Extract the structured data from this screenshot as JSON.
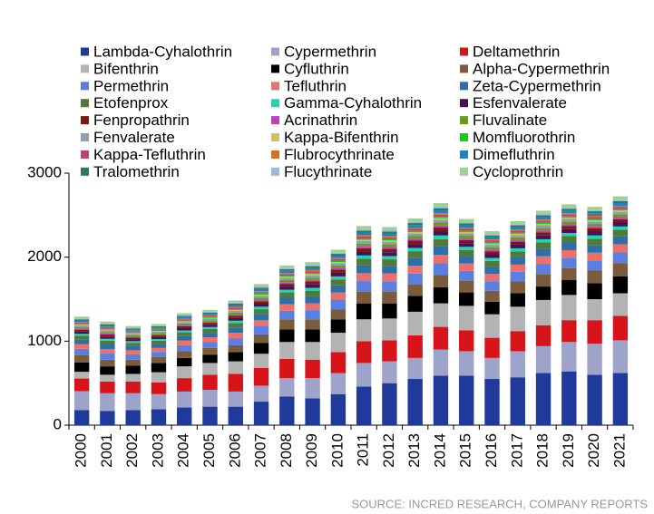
{
  "chart_data": {
    "type": "bar",
    "stacked": true,
    "source": "SOURCE: INCRED RESEARCH, COMPANY REPORTS",
    "categories": [
      "2000",
      "2001",
      "2002",
      "2003",
      "2004",
      "2005",
      "2006",
      "2007",
      "2008",
      "2009",
      "2010",
      "2011",
      "2012",
      "2013",
      "2014",
      "2015",
      "2016",
      "2017",
      "2018",
      "2019",
      "2020",
      "2021"
    ],
    "ylim": [
      0,
      3000
    ],
    "yticks": [
      0,
      1000,
      2000,
      3000
    ],
    "grid": false,
    "series": [
      {
        "name": "Lambda-Cyhalothrin",
        "color": "#1f3a9a",
        "values": [
          180,
          170,
          180,
          190,
          210,
          220,
          220,
          280,
          340,
          320,
          370,
          460,
          500,
          550,
          590,
          590,
          550,
          570,
          620,
          640,
          600,
          620
        ]
      },
      {
        "name": "Cypermethrin",
        "color": "#9ea3c9",
        "values": [
          225,
          210,
          200,
          180,
          190,
          200,
          180,
          190,
          220,
          240,
          250,
          280,
          260,
          250,
          310,
          290,
          250,
          310,
          320,
          350,
          370,
          390
        ]
      },
      {
        "name": "Deltamethrin",
        "color": "#d7141a",
        "values": [
          150,
          140,
          140,
          140,
          160,
          180,
          210,
          210,
          230,
          220,
          250,
          260,
          250,
          270,
          270,
          250,
          240,
          240,
          250,
          260,
          280,
          290
        ]
      },
      {
        "name": "Bifenthrin",
        "color": "#b3b3b3",
        "values": [
          80,
          80,
          90,
          120,
          140,
          140,
          150,
          170,
          200,
          210,
          230,
          260,
          260,
          280,
          280,
          290,
          280,
          290,
          300,
          300,
          250,
          270
        ]
      },
      {
        "name": "Cyfluthrin",
        "color": "#000000",
        "values": [
          110,
          100,
          100,
          110,
          100,
          100,
          110,
          130,
          150,
          150,
          160,
          190,
          180,
          190,
          190,
          160,
          150,
          160,
          160,
          180,
          190,
          200
        ]
      },
      {
        "name": "Alpha-Cypermethrin",
        "color": "#7a5c3c",
        "values": [
          90,
          80,
          70,
          70,
          80,
          80,
          80,
          100,
          120,
          120,
          120,
          140,
          140,
          140,
          150,
          140,
          130,
          140,
          150,
          140,
          150,
          160
        ]
      },
      {
        "name": "Permethrin",
        "color": "#5b7fe0",
        "values": [
          73,
          72,
          64,
          62,
          72,
          72,
          85,
          96,
          102,
          109,
          114,
          125,
          123,
          125,
          136,
          117,
          114,
          115,
          120,
          122,
          122,
          126
        ]
      },
      {
        "name": "Tefluthrin",
        "color": "#ec6f6a",
        "values": [
          55,
          54,
          48,
          47,
          54,
          54,
          64,
          72,
          77,
          82,
          85,
          94,
          92,
          94,
          102,
          88,
          85,
          86,
          90,
          91,
          91,
          95
        ]
      },
      {
        "name": "Zeta-Cypermethrin",
        "color": "#2f6fa8",
        "values": [
          55,
          54,
          48,
          47,
          54,
          54,
          64,
          72,
          77,
          82,
          85,
          94,
          92,
          94,
          102,
          88,
          85,
          86,
          90,
          91,
          91,
          95
        ]
      },
      {
        "name": "Etofenprox",
        "color": "#4f7a3a",
        "values": [
          46,
          45,
          40,
          39,
          45,
          45,
          53,
          60,
          64,
          68,
          71,
          78,
          77,
          78,
          85,
          73,
          71,
          72,
          75,
          76,
          76,
          79
        ]
      },
      {
        "name": "Gamma-Cyhalothrin",
        "color": "#20d6b0",
        "values": [
          23,
          23,
          20,
          20,
          23,
          23,
          27,
          30,
          32,
          34,
          36,
          39,
          39,
          39,
          43,
          37,
          36,
          36,
          38,
          38,
          38,
          40
        ]
      },
      {
        "name": "Esfenvalerate",
        "color": "#4a0e5a",
        "values": [
          27,
          27,
          24,
          23,
          27,
          27,
          32,
          36,
          38,
          41,
          43,
          47,
          46,
          47,
          51,
          44,
          43,
          43,
          45,
          46,
          46,
          47
        ]
      },
      {
        "name": "Fenpropathrin",
        "color": "#7a1a10",
        "values": [
          23,
          23,
          20,
          20,
          23,
          23,
          27,
          30,
          32,
          34,
          36,
          39,
          39,
          39,
          43,
          37,
          36,
          36,
          38,
          38,
          38,
          40
        ]
      },
      {
        "name": "Acrinathrin",
        "color": "#c040c0",
        "values": [
          14,
          14,
          12,
          12,
          14,
          14,
          16,
          18,
          19,
          20,
          21,
          23,
          23,
          23,
          26,
          22,
          21,
          22,
          23,
          23,
          23,
          24
        ]
      },
      {
        "name": "Fluvalinate",
        "color": "#6a9a1a",
        "values": [
          18,
          18,
          16,
          16,
          18,
          18,
          21,
          24,
          26,
          27,
          28,
          31,
          31,
          31,
          34,
          29,
          28,
          29,
          30,
          30,
          30,
          32
        ]
      },
      {
        "name": "Fenvalerate",
        "color": "#8aa0b0",
        "values": [
          18,
          18,
          16,
          16,
          18,
          18,
          21,
          24,
          26,
          27,
          28,
          31,
          31,
          31,
          34,
          29,
          28,
          29,
          30,
          30,
          30,
          32
        ]
      },
      {
        "name": "Kappa-Bifenthrin",
        "color": "#d0c060",
        "values": [
          9,
          9,
          8,
          8,
          9,
          9,
          11,
          12,
          13,
          14,
          14,
          16,
          15,
          16,
          17,
          15,
          14,
          14,
          15,
          15,
          15,
          16
        ]
      },
      {
        "name": "Momfluorothrin",
        "color": "#10d010",
        "values": [
          9,
          9,
          8,
          8,
          9,
          9,
          11,
          12,
          13,
          14,
          14,
          16,
          15,
          16,
          17,
          15,
          14,
          14,
          15,
          15,
          15,
          16
        ]
      },
      {
        "name": "Kappa-Tefluthrin",
        "color": "#c04070",
        "values": [
          14,
          14,
          12,
          12,
          14,
          14,
          16,
          18,
          19,
          20,
          21,
          23,
          23,
          23,
          26,
          22,
          21,
          22,
          23,
          23,
          23,
          24
        ]
      },
      {
        "name": "Flubrocythrinate",
        "color": "#e06a20",
        "values": [
          9,
          9,
          8,
          8,
          9,
          9,
          11,
          12,
          13,
          14,
          14,
          16,
          15,
          16,
          17,
          15,
          14,
          14,
          15,
          15,
          15,
          16
        ]
      },
      {
        "name": "Dimefluthrin",
        "color": "#2080c0",
        "values": [
          18,
          18,
          16,
          16,
          18,
          18,
          21,
          24,
          26,
          27,
          28,
          31,
          31,
          31,
          34,
          29,
          28,
          29,
          30,
          30,
          30,
          32
        ]
      },
      {
        "name": "Tralomethrin",
        "color": "#2a7a60",
        "values": [
          14,
          14,
          12,
          12,
          14,
          14,
          16,
          18,
          19,
          20,
          21,
          23,
          23,
          23,
          26,
          22,
          21,
          22,
          23,
          23,
          23,
          24
        ]
      },
      {
        "name": "Flucythrinate",
        "color": "#9ab8e0",
        "values": [
          9,
          9,
          8,
          8,
          9,
          9,
          11,
          12,
          13,
          14,
          14,
          16,
          15,
          16,
          17,
          15,
          14,
          14,
          15,
          15,
          15,
          16
        ]
      },
      {
        "name": "Cycloprothrin",
        "color": "#a0d090",
        "values": [
          23,
          23,
          20,
          20,
          23,
          23,
          27,
          30,
          32,
          34,
          36,
          39,
          39,
          39,
          43,
          37,
          36,
          36,
          38,
          38,
          38,
          40
        ]
      }
    ]
  }
}
